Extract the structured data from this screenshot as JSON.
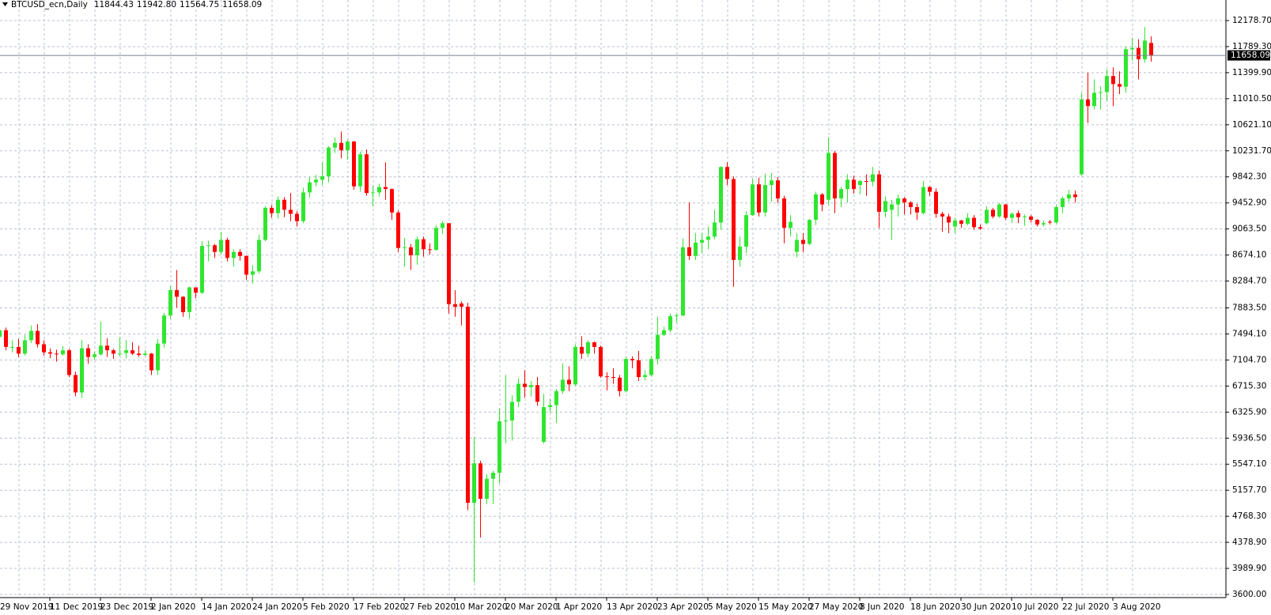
{
  "chart_data": {
    "type": "candlestick",
    "title": "BTCUSD_ecn,Daily",
    "header_values": [
      "11844.43",
      "11942.80",
      "11564.75",
      "11658.09"
    ],
    "categories": [
      "29 Nov 2019",
      null,
      null,
      null,
      null,
      null,
      null,
      null,
      "11 Dec 2019",
      null,
      null,
      null,
      null,
      null,
      null,
      null,
      "23 Dec 2019",
      null,
      null,
      null,
      null,
      null,
      null,
      null,
      "2 Jan 2020",
      null,
      null,
      null,
      null,
      null,
      null,
      null,
      "14 Jan 2020",
      null,
      null,
      null,
      null,
      null,
      null,
      null,
      "24 Jan 2020",
      null,
      null,
      null,
      null,
      null,
      null,
      null,
      "5 Feb 2020",
      null,
      null,
      null,
      null,
      null,
      null,
      null,
      "17 Feb 2020",
      null,
      null,
      null,
      null,
      null,
      null,
      null,
      "27 Feb 2020",
      null,
      null,
      null,
      null,
      null,
      null,
      null,
      "10 Mar 2020",
      null,
      null,
      null,
      null,
      null,
      null,
      null,
      "20 Mar 2020",
      null,
      null,
      null,
      null,
      null,
      null,
      null,
      "1 Apr 2020",
      null,
      null,
      null,
      null,
      null,
      null,
      null,
      "13 Apr 2020",
      null,
      null,
      null,
      null,
      null,
      null,
      null,
      "23 Apr 2020",
      null,
      null,
      null,
      null,
      null,
      null,
      null,
      "5 May 2020",
      null,
      null,
      null,
      null,
      null,
      null,
      null,
      "15 May 2020",
      null,
      null,
      null,
      null,
      null,
      null,
      null,
      "27 May 2020",
      null,
      null,
      null,
      null,
      null,
      null,
      null,
      "8 Jun 2020",
      null,
      null,
      null,
      null,
      null,
      null,
      null,
      "18 Jun 2020",
      null,
      null,
      null,
      null,
      null,
      null,
      null,
      "30 Jun 2020",
      null,
      null,
      null,
      null,
      null,
      null,
      null,
      "10 Jul 2020",
      null,
      null,
      null,
      null,
      null,
      null,
      null,
      "22 Jul 2020",
      null,
      null,
      null,
      null,
      null,
      null,
      null,
      "3 Aug 2020",
      null,
      null,
      null,
      null,
      null,
      null
    ],
    "open": [
      7450,
      7550,
      7290,
      7300,
      7200,
      7400,
      7540,
      7340,
      7220,
      7200,
      7190,
      7250,
      6880,
      6620,
      7280,
      7150,
      7190,
      7320,
      7250,
      7200,
      7210,
      7250,
      7200,
      7180,
      7200,
      6950,
      7350,
      7770,
      8150,
      8050,
      7820,
      8190,
      8110,
      8810,
      8820,
      8720,
      8900,
      8630,
      8720,
      8660,
      8380,
      8430,
      8900,
      9380,
      9300,
      9500,
      9350,
      9290,
      9180,
      9610,
      9760,
      9800,
      9850,
      10280,
      10350,
      10240,
      10370,
      9700,
      10180,
      9600,
      9610,
      9690,
      9660,
      9310,
      8780,
      8790,
      8670,
      8910,
      8760,
      8750,
      9080,
      9150,
      7940,
      7950,
      7900,
      4970,
      5560,
      5030,
      5330,
      5420,
      6190,
      6200,
      6480,
      6750,
      6700,
      6730,
      5880,
      6400,
      6430,
      6640,
      6810,
      6740,
      7300,
      7200,
      7370,
      7300,
      6860,
      6850,
      6840,
      6640,
      7120,
      7100,
      6850,
      6880,
      7120,
      7480,
      7550,
      7760,
      7770,
      8790,
      8660,
      8860,
      8900,
      8950,
      9160,
      9990,
      9810,
      8600,
      8800,
      9270,
      9730,
      9310,
      9720,
      9790,
      9520,
      9080,
      8720,
      8900,
      8840,
      9200,
      9580,
      9500,
      10200,
      9520,
      9660,
      9800,
      9720,
      9780,
      9770,
      9880,
      9320,
      9350,
      9430,
      9520,
      9460,
      9390,
      9300,
      9690,
      9620,
      9290,
      9250,
      9100,
      9190,
      9140,
      9230,
      9090,
      9150,
      9350,
      9250,
      9430,
      9230,
      9300,
      9240,
      9250,
      9200,
      9130,
      9170,
      9160,
      9390,
      9520,
      9580,
      9880,
      11000,
      10900,
      11100,
      11110,
      11350,
      11230,
      11190,
      11750,
      11770,
      11600,
      11844.43
    ],
    "high": [
      7700,
      7590,
      7400,
      7420,
      7480,
      7620,
      7640,
      7400,
      7280,
      7260,
      7310,
      7270,
      6930,
      7400,
      7340,
      7230,
      7680,
      7430,
      7270,
      7440,
      7400,
      7370,
      7320,
      7250,
      7210,
      7420,
      7810,
      8210,
      8450,
      8060,
      8200,
      8190,
      8880,
      8890,
      8840,
      9020,
      8930,
      8760,
      8760,
      8670,
      8520,
      8980,
      9400,
      9420,
      9550,
      9540,
      9600,
      9330,
      9680,
      9840,
      9870,
      10060,
      10300,
      10430,
      10520,
      10400,
      10380,
      10220,
      10250,
      9710,
      9740,
      10060,
      9670,
      9340,
      8930,
      8840,
      8950,
      8950,
      8850,
      9120,
      9180,
      9150,
      8150,
      7980,
      7960,
      5950,
      5600,
      5400,
      5450,
      6380,
      6880,
      6580,
      6830,
      6950,
      6790,
      6850,
      6600,
      6520,
      6670,
      7050,
      7010,
      7340,
      7460,
      7400,
      7380,
      7320,
      6920,
      6980,
      6880,
      7150,
      7160,
      7240,
      6950,
      7160,
      7750,
      7600,
      7800,
      7800,
      8920,
      9460,
      9000,
      9000,
      9100,
      9350,
      10000,
      10060,
      9850,
      8950,
      9330,
      9820,
      9830,
      9890,
      9900,
      9840,
      9560,
      9270,
      9000,
      9000,
      9210,
      9620,
      9600,
      10430,
      10230,
      9690,
      9880,
      9860,
      9800,
      9880,
      9990,
      9940,
      9550,
      9500,
      9580,
      9540,
      9480,
      9440,
      9780,
      9700,
      9670,
      9320,
      9290,
      9230,
      9200,
      9300,
      9270,
      9130,
      9400,
      9380,
      9450,
      9440,
      9310,
      9340,
      9280,
      9270,
      9210,
      9190,
      9200,
      9420,
      9550,
      9650,
      9640,
      11100,
      11400,
      11300,
      11200,
      11450,
      11480,
      11420,
      11790,
      11920,
      11900,
      12080,
      11942.8
    ],
    "low": [
      7380,
      7250,
      7220,
      7150,
      7170,
      7360,
      7290,
      7170,
      7130,
      7080,
      7170,
      6850,
      6560,
      6540,
      7050,
      7110,
      7170,
      7150,
      7120,
      7160,
      7130,
      7180,
      7150,
      7160,
      6880,
      6880,
      7290,
      7720,
      7890,
      7750,
      7720,
      8030,
      8090,
      8580,
      8630,
      8680,
      8580,
      8500,
      8590,
      8300,
      8250,
      8400,
      8880,
      9230,
      9220,
      9240,
      9180,
      9100,
      9150,
      9530,
      9700,
      9720,
      9760,
      10200,
      10120,
      10100,
      9650,
      9620,
      9560,
      9400,
      9550,
      9500,
      9200,
      8720,
      8500,
      8450,
      8530,
      8650,
      8680,
      8740,
      8990,
      7800,
      7750,
      7620,
      4860,
      3780,
      4450,
      4950,
      4950,
      5260,
      5860,
      5900,
      6400,
      6540,
      6560,
      6420,
      5860,
      6320,
      6160,
      6600,
      6640,
      6720,
      7120,
      7150,
      7200,
      6840,
      6650,
      6750,
      6560,
      6620,
      6980,
      6790,
      6800,
      6860,
      7040,
      7460,
      7520,
      7660,
      7760,
      8600,
      8600,
      8700,
      8760,
      8910,
      9050,
      9720,
      8200,
      8500,
      8700,
      9260,
      9250,
      9250,
      9470,
      9450,
      8850,
      8950,
      8640,
      8720,
      8820,
      9120,
      9330,
      9420,
      9300,
      9390,
      9460,
      9590,
      9580,
      9560,
      9700,
      9080,
      9240,
      8900,
      9250,
      9280,
      9280,
      9200,
      9280,
      9560,
      9230,
      9020,
      9000,
      9000,
      9080,
      9120,
      9050,
      9050,
      9130,
      9220,
      9230,
      9200,
      9150,
      9150,
      9110,
      9160,
      9100,
      9100,
      9130,
      9140,
      9300,
      9470,
      9460,
      9860,
      10650,
      10850,
      10850,
      10980,
      10900,
      11080,
      11100,
      11580,
      11300,
      11550,
      11564.75
    ],
    "close": [
      7550,
      7300,
      7300,
      7200,
      7400,
      7540,
      7340,
      7220,
      7200,
      7190,
      7250,
      6880,
      6620,
      7280,
      7150,
      7190,
      7320,
      7250,
      7200,
      7200,
      7250,
      7200,
      7180,
      7200,
      6950,
      7350,
      7770,
      8150,
      8050,
      7820,
      8190,
      8110,
      8810,
      8820,
      8720,
      8900,
      8630,
      8720,
      8660,
      8380,
      8430,
      8900,
      9380,
      9300,
      9500,
      9350,
      9290,
      9180,
      9610,
      9760,
      9800,
      9850,
      10280,
      10350,
      10240,
      10370,
      9700,
      10180,
      9600,
      9610,
      9690,
      9660,
      9310,
      8780,
      8790,
      8670,
      8910,
      8760,
      8750,
      9080,
      9150,
      7940,
      7900,
      7900,
      4970,
      5560,
      5030,
      5330,
      5420,
      6190,
      6200,
      6480,
      6750,
      6700,
      6730,
      6480,
      6400,
      6430,
      6640,
      6810,
      6740,
      7300,
      7200,
      7370,
      7300,
      6860,
      6850,
      6840,
      6640,
      7120,
      7100,
      6850,
      6880,
      7120,
      7480,
      7550,
      7760,
      7770,
      8790,
      8660,
      8860,
      8900,
      8950,
      9160,
      9990,
      9810,
      8600,
      8800,
      9270,
      9730,
      9310,
      9720,
      9790,
      9520,
      9080,
      9170,
      8900,
      8840,
      9200,
      9580,
      9430,
      10200,
      9520,
      9660,
      9800,
      9660,
      9780,
      9770,
      9880,
      9320,
      9480,
      9430,
      9520,
      9460,
      9390,
      9310,
      9690,
      9620,
      9290,
      9250,
      9160,
      9190,
      9140,
      9230,
      9090,
      9070,
      9350,
      9250,
      9430,
      9230,
      9290,
      9240,
      9250,
      9200,
      9130,
      9150,
      9160,
      9390,
      9520,
      9580,
      9540,
      11000,
      10900,
      11100,
      11110,
      11350,
      11230,
      11190,
      11750,
      11770,
      11600,
      11880,
      11658.09
    ],
    "up_color": "#2fe62f",
    "down_color": "#ff0000",
    "ylim": [
      3553,
      12486
    ],
    "yticks": [
      {
        "value": 3600.0,
        "label": "3600.00"
      },
      {
        "value": 3989.9,
        "label": "3989.90"
      },
      {
        "value": 4378.9,
        "label": "4378.90"
      },
      {
        "value": 4768.3,
        "label": "4768.30"
      },
      {
        "value": 5157.7,
        "label": "5157.70"
      },
      {
        "value": 5547.1,
        "label": "5547.10"
      },
      {
        "value": 5936.5,
        "label": "5936.50"
      },
      {
        "value": 6325.9,
        "label": "6325.90"
      },
      {
        "value": 6715.3,
        "label": "6715.30"
      },
      {
        "value": 7104.7,
        "label": "7104.70"
      },
      {
        "value": 7494.1,
        "label": "7494.10"
      },
      {
        "value": 7883.5,
        "label": "7883.50"
      },
      {
        "value": 8284.7,
        "label": "8284.70"
      },
      {
        "value": 8674.1,
        "label": "8674.10"
      },
      {
        "value": 9063.5,
        "label": "9063.50"
      },
      {
        "value": 9452.9,
        "label": "9452.90"
      },
      {
        "value": 9842.3,
        "label": "9842.30"
      },
      {
        "value": 10231.7,
        "label": "10231.70"
      },
      {
        "value": 10621.1,
        "label": "10621.10"
      },
      {
        "value": 11010.5,
        "label": "11010.50"
      },
      {
        "value": 11399.9,
        "label": "11399.90"
      },
      {
        "value": 11789.3,
        "label": "11789.30"
      },
      {
        "value": 12178.7,
        "label": "12178.70"
      }
    ],
    "last_price": {
      "value": 11658.09,
      "label": "11658.09"
    },
    "grid": true,
    "grid_color": "#b8c0d0"
  }
}
